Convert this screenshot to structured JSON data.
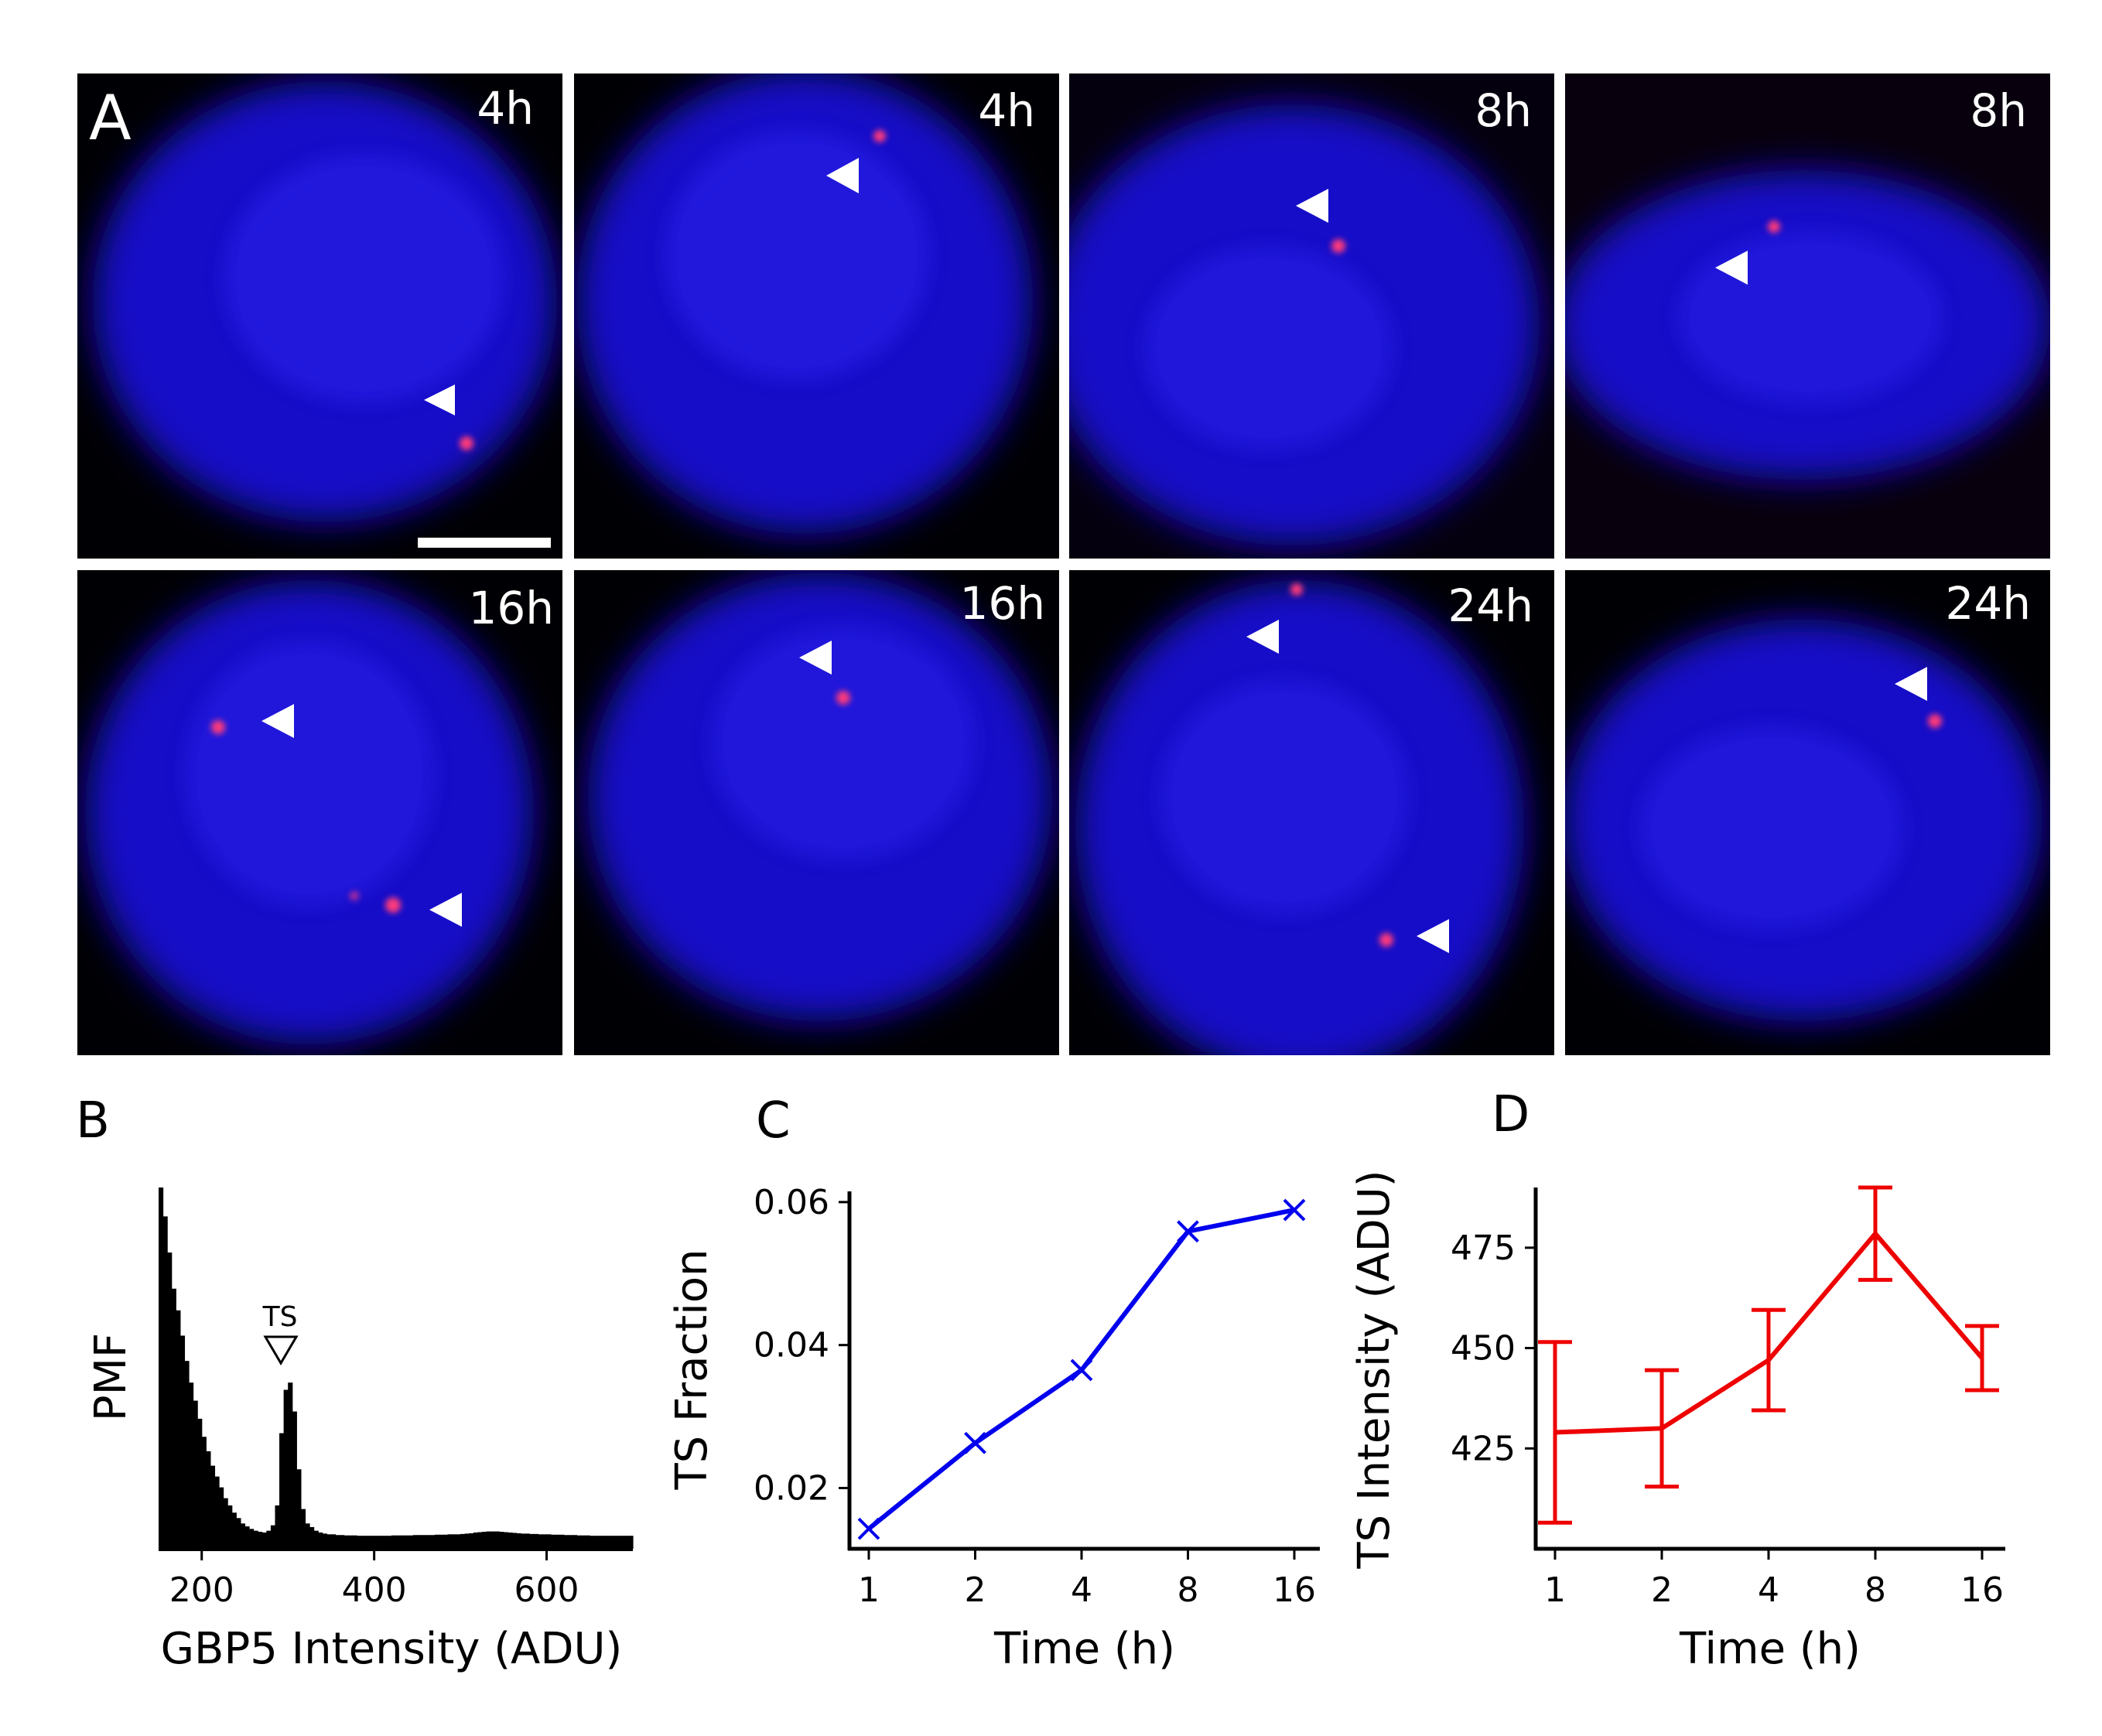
{
  "panel_labels": {
    "a": "A",
    "b": "B",
    "c": "C",
    "d": "D"
  },
  "micrographs": {
    "time_labels": [
      "4h",
      "4h",
      "8h",
      "8h",
      "16h",
      "16h",
      "24h",
      "24h"
    ]
  },
  "colors": {
    "nucleus": "#1a14e0",
    "spot": "#ff2a6a",
    "series_c": "#0000ee",
    "series_d": "#ee0000",
    "histogram": "#000000"
  },
  "chart_data": [
    {
      "type": "bar",
      "panel": "B",
      "title": "",
      "xlabel": "GBP5 Intensity (ADU)",
      "ylabel": "PMF",
      "xlim": [
        150,
        700
      ],
      "xticks": [
        "200",
        "400",
        "600"
      ],
      "annotation": "TS",
      "annotation_x": 290,
      "grid": false,
      "bin_width": 5,
      "x_start": 150,
      "values_relative": [
        1.0,
        0.92,
        0.82,
        0.72,
        0.66,
        0.59,
        0.52,
        0.46,
        0.41,
        0.36,
        0.31,
        0.27,
        0.23,
        0.2,
        0.17,
        0.14,
        0.12,
        0.1,
        0.085,
        0.07,
        0.062,
        0.055,
        0.05,
        0.047,
        0.045,
        0.05,
        0.065,
        0.12,
        0.32,
        0.44,
        0.46,
        0.38,
        0.22,
        0.11,
        0.07,
        0.06,
        0.05,
        0.045,
        0.042,
        0.04,
        0.04,
        0.038,
        0.038,
        0.037,
        0.037,
        0.037,
        0.036,
        0.036,
        0.036,
        0.036,
        0.036,
        0.036,
        0.036,
        0.036,
        0.037,
        0.037,
        0.037,
        0.037,
        0.037,
        0.038,
        0.038,
        0.038,
        0.038,
        0.038,
        0.039,
        0.039,
        0.039,
        0.04,
        0.04,
        0.04,
        0.041,
        0.042,
        0.043,
        0.045,
        0.046,
        0.047,
        0.048,
        0.048,
        0.048,
        0.047,
        0.046,
        0.045,
        0.044,
        0.043,
        0.042,
        0.042,
        0.041,
        0.041,
        0.04,
        0.04,
        0.04,
        0.039,
        0.039,
        0.039,
        0.038,
        0.038,
        0.038,
        0.037,
        0.037,
        0.037,
        0.036,
        0.036,
        0.036,
        0.036,
        0.036,
        0.036,
        0.036,
        0.036,
        0.036,
        0.036
      ]
    },
    {
      "type": "line",
      "panel": "C",
      "title": "",
      "xlabel": "Time (h)",
      "ylabel": "TS Fraction",
      "x": [
        1,
        2,
        4,
        8,
        16
      ],
      "xticks": [
        "1",
        "2",
        "4",
        "8",
        "16"
      ],
      "x_scale": "log2",
      "y": [
        0.0143,
        0.0263,
        0.0365,
        0.0559,
        0.0589
      ],
      "ylim": [
        0.0115,
        0.0615
      ],
      "yticks": [
        "0.02",
        "0.04",
        "0.06"
      ],
      "marker": "x",
      "grid": false
    },
    {
      "type": "line",
      "panel": "D",
      "title": "",
      "xlabel": "Time (h)",
      "ylabel": "TS Intensity (ADU)",
      "x": [
        1,
        2,
        4,
        8,
        16
      ],
      "xticks": [
        "1",
        "2",
        "4",
        "8",
        "16"
      ],
      "x_scale": "log2",
      "y": [
        429,
        430,
        447,
        478.5,
        447.5
      ],
      "yerr": [
        22.5,
        14.5,
        12.5,
        11.5,
        8
      ],
      "ylim": [
        400,
        490
      ],
      "yticks": [
        "425",
        "450",
        "475"
      ],
      "grid": false
    }
  ]
}
